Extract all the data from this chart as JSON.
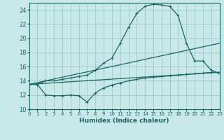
{
  "xlabel": "Humidex (Indice chaleur)",
  "xlim": [
    0,
    23
  ],
  "ylim": [
    10,
    25
  ],
  "yticks": [
    10,
    12,
    14,
    16,
    18,
    20,
    22,
    24
  ],
  "xticks": [
    0,
    1,
    2,
    3,
    4,
    5,
    6,
    7,
    8,
    9,
    10,
    11,
    12,
    13,
    14,
    15,
    16,
    17,
    18,
    19,
    20,
    21,
    22,
    23
  ],
  "bg_color": "#c8e8e8",
  "grid_color": "#a0c8c8",
  "line_color": "#1a6464",
  "curve1_x": [
    0,
    1,
    2,
    3,
    4,
    5,
    6,
    7,
    8,
    9,
    10,
    11,
    12,
    13,
    14,
    15,
    16,
    17,
    18,
    19,
    20,
    21,
    22,
    23
  ],
  "curve1_y": [
    13.5,
    13.5,
    14.0,
    14.0,
    14.2,
    14.4,
    14.6,
    14.8,
    15.5,
    16.5,
    17.2,
    19.3,
    21.5,
    23.5,
    24.5,
    24.8,
    24.7,
    24.5,
    23.2,
    19.3,
    16.8,
    16.8,
    15.5,
    15.0
  ],
  "curve2_x": [
    0,
    1,
    2,
    3,
    4,
    5,
    6,
    7,
    8,
    9,
    10,
    11,
    12,
    13,
    14,
    15,
    16,
    17,
    18,
    19,
    20,
    21,
    22,
    23
  ],
  "curve2_y": [
    13.5,
    13.5,
    12.0,
    11.9,
    11.9,
    12.0,
    11.9,
    11.0,
    12.3,
    13.0,
    13.4,
    13.7,
    14.0,
    14.2,
    14.4,
    14.5,
    14.6,
    14.7,
    14.8,
    14.9,
    15.0,
    15.1,
    15.2,
    15.2
  ],
  "line3_x": [
    0,
    23
  ],
  "line3_y": [
    13.5,
    19.3
  ],
  "line4_x": [
    0,
    23
  ],
  "line4_y": [
    13.5,
    15.2
  ]
}
